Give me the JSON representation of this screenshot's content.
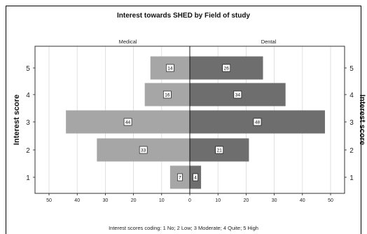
{
  "chart_data": {
    "type": "bar",
    "title": "Interest towards SHED  by Field of study",
    "caption": "Interest scores coding: 1 No; 2 Low; 3 Moderate; 4 Quite; 5 High",
    "ylabel": "Interest score",
    "categories": [
      "1",
      "2",
      "3",
      "4",
      "5"
    ],
    "xticks": [
      50,
      40,
      30,
      20,
      10,
      0,
      10,
      20,
      30,
      40,
      50
    ],
    "xlim": [
      -55,
      55
    ],
    "series": [
      {
        "name": "Medical",
        "values": [
          7,
          33,
          44,
          16,
          14
        ],
        "color": "#a6a6a6"
      },
      {
        "name": "Dental",
        "values": [
          4,
          21,
          48,
          34,
          26
        ],
        "color": "#6e6e6e"
      }
    ]
  }
}
